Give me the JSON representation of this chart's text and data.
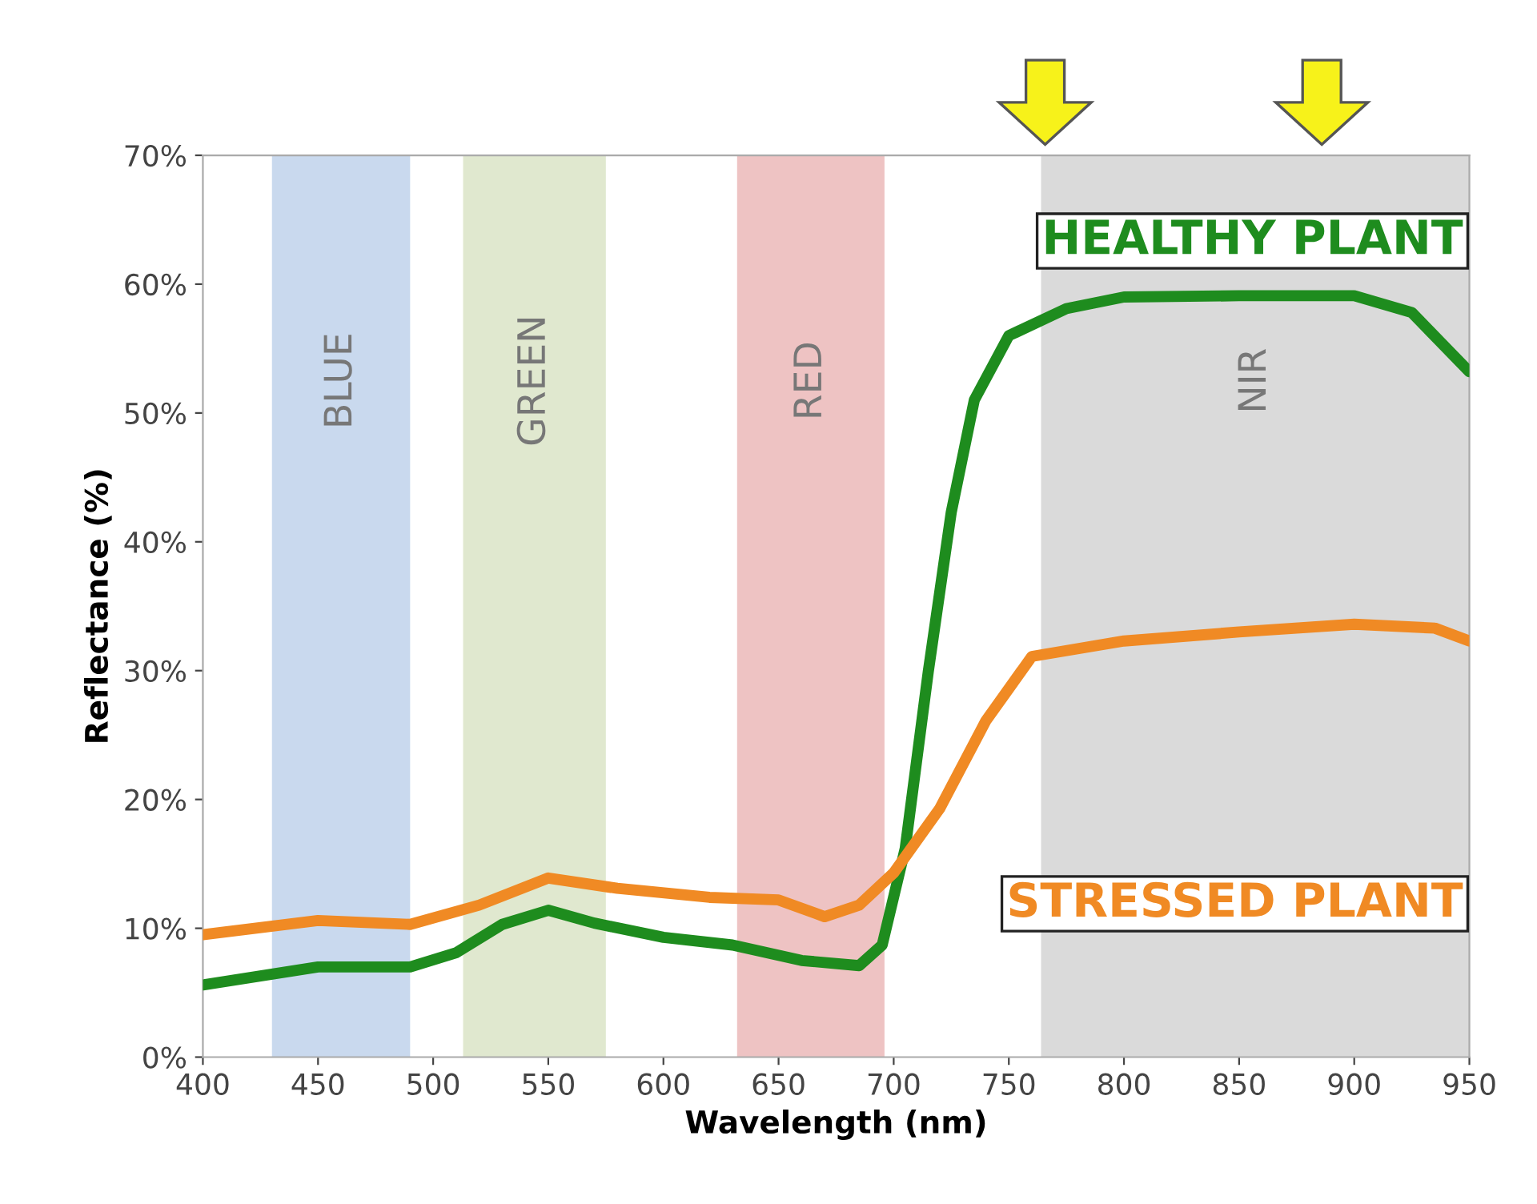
{
  "chart_data": {
    "type": "line",
    "xlabel": "Wavelength (nm)",
    "ylabel": "Reflectance (%)",
    "xlim": [
      400,
      950
    ],
    "xticks": [
      400,
      450,
      500,
      550,
      600,
      650,
      700,
      750,
      800,
      850,
      900,
      950
    ],
    "ylim": [
      0,
      70
    ],
    "yticks": [
      {
        "value": 0,
        "label": "0%"
      },
      {
        "value": 10,
        "label": "10%"
      },
      {
        "value": 20,
        "label": "20%"
      },
      {
        "value": 30,
        "label": "30%"
      },
      {
        "value": 40,
        "label": "40%"
      },
      {
        "value": 50,
        "label": "50%"
      },
      {
        "value": 60,
        "label": "60%"
      },
      {
        "value": 70,
        "label": "70%"
      }
    ],
    "grid": false,
    "legend": false,
    "line_style": "solid",
    "marker": "none",
    "bands": [
      {
        "axis": "x",
        "from": 430,
        "to": 490,
        "label": "BLUE",
        "color": "#c9d9ee"
      },
      {
        "axis": "x",
        "from": 513,
        "to": 575,
        "label": "GREEN",
        "color": "#e0e8cf"
      },
      {
        "axis": "x",
        "from": 632,
        "to": 696,
        "label": "RED",
        "color": "#eec3c3"
      },
      {
        "axis": "x",
        "from": 764,
        "to": 950,
        "label": "NIR",
        "color": "#dadada"
      }
    ],
    "series": [
      {
        "name": "HEALTHY PLANT",
        "color": "#1e8c1e",
        "x": [
          400,
          450,
          490,
          510,
          530,
          550,
          570,
          600,
          630,
          660,
          685,
          695,
          705,
          715,
          725,
          735,
          750,
          775,
          800,
          850,
          900,
          925,
          950
        ],
        "values": [
          5.6,
          7.0,
          7.0,
          8.1,
          10.3,
          11.4,
          10.4,
          9.3,
          8.7,
          7.5,
          7.1,
          8.7,
          16.2,
          29.9,
          42.3,
          51,
          56,
          58.1,
          59,
          59.1,
          59.1,
          57.8,
          53.2
        ]
      },
      {
        "name": "STRESSED PLANT",
        "color": "#f08a24",
        "x": [
          400,
          450,
          490,
          520,
          550,
          580,
          620,
          650,
          670,
          685,
          700,
          720,
          740,
          760,
          800,
          850,
          900,
          935,
          950
        ],
        "values": [
          9.5,
          10.6,
          10.3,
          11.8,
          13.9,
          13.1,
          12.4,
          12.2,
          10.9,
          11.8,
          14.3,
          19.3,
          26.1,
          31.1,
          32.3,
          33.0,
          33.6,
          33.3,
          32.3
        ]
      }
    ]
  }
}
